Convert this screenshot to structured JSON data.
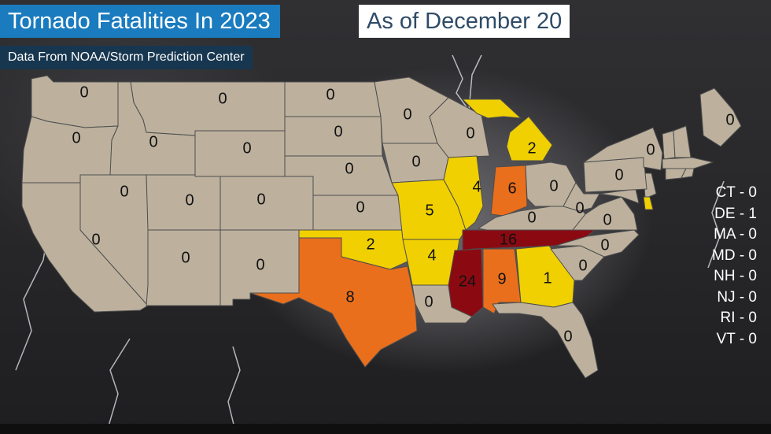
{
  "header": {
    "title": "Tornado Fatalities In 2023",
    "as_of": "As of December 20",
    "source": "Data From NOAA/Storm Prediction Center"
  },
  "colors": {
    "zero": "#bdb19e",
    "low": "#f0d000",
    "mid": "#e96f1c",
    "high": "#8b0a12"
  },
  "map_data": {
    "states": [
      {
        "id": "WA",
        "value": "0",
        "color": "zero"
      },
      {
        "id": "OR",
        "value": "0",
        "color": "zero"
      },
      {
        "id": "CA",
        "value": "0",
        "color": "zero"
      },
      {
        "id": "ID",
        "value": "0",
        "color": "zero"
      },
      {
        "id": "NV",
        "value": "0",
        "color": "zero"
      },
      {
        "id": "MT",
        "value": "0",
        "color": "zero"
      },
      {
        "id": "WY",
        "value": "0",
        "color": "zero"
      },
      {
        "id": "UT",
        "value": "0",
        "color": "zero"
      },
      {
        "id": "CO",
        "value": "0",
        "color": "zero"
      },
      {
        "id": "AZ",
        "value": "0",
        "color": "zero"
      },
      {
        "id": "NM",
        "value": "0",
        "color": "zero"
      },
      {
        "id": "ND",
        "value": "0",
        "color": "zero"
      },
      {
        "id": "SD",
        "value": "0",
        "color": "zero"
      },
      {
        "id": "NE",
        "value": "0",
        "color": "zero"
      },
      {
        "id": "KS",
        "value": "0",
        "color": "zero"
      },
      {
        "id": "OK",
        "value": "2",
        "color": "low"
      },
      {
        "id": "TX",
        "value": "8",
        "color": "mid"
      },
      {
        "id": "MN",
        "value": "0",
        "color": "zero"
      },
      {
        "id": "IA",
        "value": "0",
        "color": "zero"
      },
      {
        "id": "MO",
        "value": "5",
        "color": "low"
      },
      {
        "id": "AR",
        "value": "4",
        "color": "low"
      },
      {
        "id": "LA",
        "value": "0",
        "color": "zero"
      },
      {
        "id": "WI",
        "value": "0",
        "color": "zero"
      },
      {
        "id": "IL",
        "value": "4",
        "color": "low"
      },
      {
        "id": "MI",
        "value": "2",
        "color": "low"
      },
      {
        "id": "IN",
        "value": "6",
        "color": "mid"
      },
      {
        "id": "OH",
        "value": "0",
        "color": "zero"
      },
      {
        "id": "KY",
        "value": "0",
        "color": "zero"
      },
      {
        "id": "TN",
        "value": "16",
        "color": "high"
      },
      {
        "id": "MS",
        "value": "24",
        "color": "high"
      },
      {
        "id": "AL",
        "value": "9",
        "color": "mid"
      },
      {
        "id": "GA",
        "value": "1",
        "color": "low"
      },
      {
        "id": "FL",
        "value": "0",
        "color": "zero"
      },
      {
        "id": "SC",
        "value": "0",
        "color": "zero"
      },
      {
        "id": "NC",
        "value": "0",
        "color": "zero"
      },
      {
        "id": "VA",
        "value": "0",
        "color": "zero"
      },
      {
        "id": "WV",
        "value": "0",
        "color": "zero"
      },
      {
        "id": "PA",
        "value": "0",
        "color": "zero"
      },
      {
        "id": "NY",
        "value": "0",
        "color": "zero"
      },
      {
        "id": "ME",
        "value": "0",
        "color": "zero"
      }
    ],
    "small_states": [
      {
        "name": "CT",
        "text": "CT - 0"
      },
      {
        "name": "DE",
        "text": "DE - 1"
      },
      {
        "name": "MA",
        "text": "MA - 0"
      },
      {
        "name": "MD",
        "text": "MD - 0"
      },
      {
        "name": "NH",
        "text": "NH - 0"
      },
      {
        "name": "NJ",
        "text": "NJ - 0"
      },
      {
        "name": "RI",
        "text": "RI - 0"
      },
      {
        "name": "VT",
        "text": "VT - 0"
      }
    ]
  }
}
